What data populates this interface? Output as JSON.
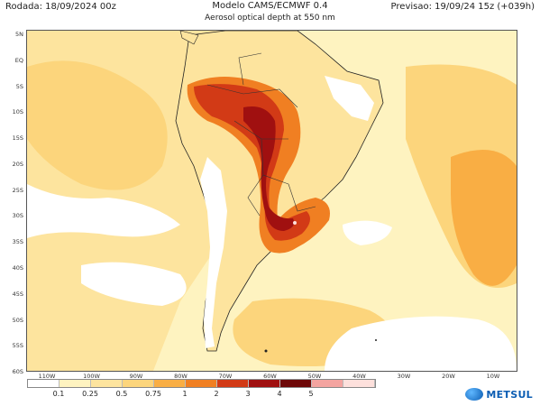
{
  "header": {
    "run": "Rodada: 18/09/2024 00z",
    "model": "Modelo CAMS/ECMWF 0.4",
    "variable": "Aerosol optical depth at 550 nm",
    "forecast": "Previsao: 19/09/24 15z (+039h)"
  },
  "map": {
    "lat_labels": [
      "5N",
      "EQ",
      "5S",
      "10S",
      "15S",
      "20S",
      "25S",
      "30S",
      "35S",
      "40S",
      "45S",
      "50S",
      "55S",
      "60S"
    ],
    "lon_labels": [
      "110W",
      "100W",
      "90W",
      "80W",
      "70W",
      "60W",
      "50W",
      "40W",
      "30W",
      "20W",
      "10W"
    ],
    "colors": {
      "land_clear": "#ffffff",
      "very_low": "#fef3c0",
      "low": "#fcd57c",
      "moderate": "#f9ae44",
      "high": "#f07f22",
      "very_high": "#d23a16",
      "extreme": "#a01010",
      "peak": "#6e0808"
    }
  },
  "legend": {
    "labels": [
      "0.1",
      "0.25",
      "0.5",
      "0.75",
      "1",
      "2",
      "3",
      "4",
      "5"
    ],
    "colors": [
      "#ffffff",
      "#fef3c0",
      "#fde49e",
      "#fcd57c",
      "#f9ae44",
      "#f07f22",
      "#d23a16",
      "#a01010",
      "#6e0808",
      "#f4a4a0",
      "#fde0dc"
    ]
  },
  "brand": {
    "name": "METSUL",
    "icon": "globe-icon"
  }
}
